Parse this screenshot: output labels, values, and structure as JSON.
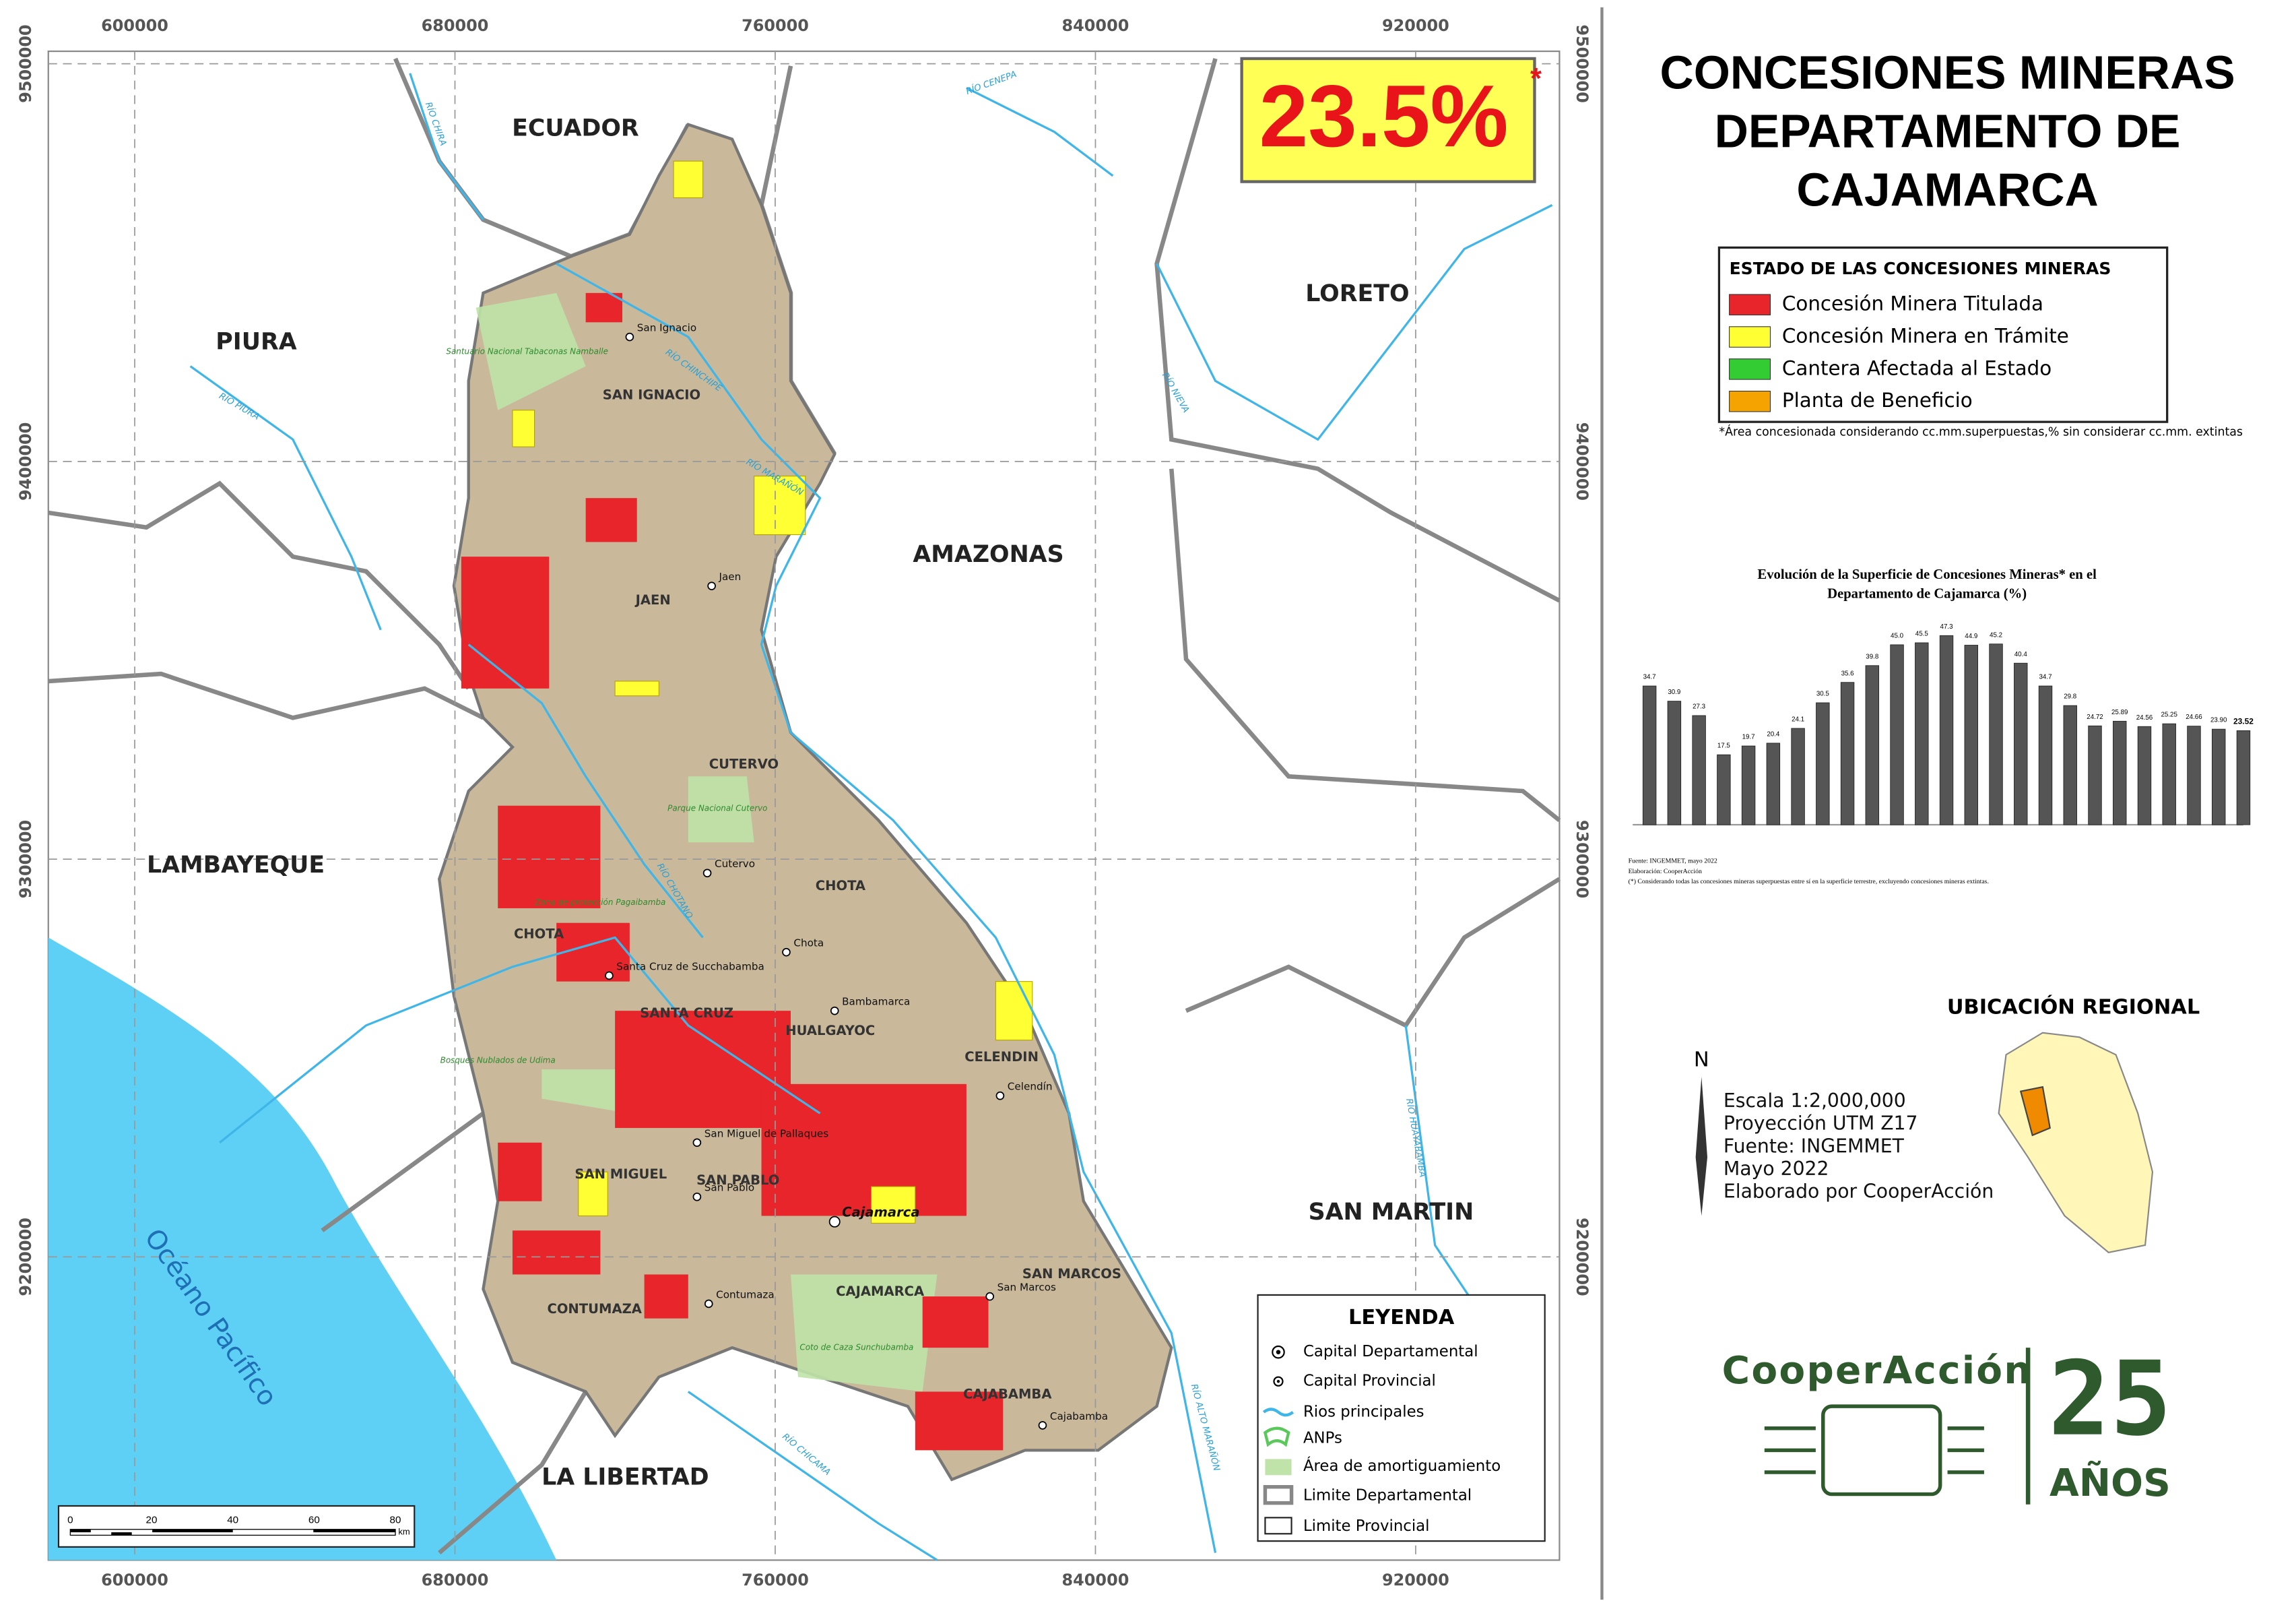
{
  "header": {
    "title_lines": [
      "CONCESIONES MINERAS",
      "DEPARTAMENTO DE",
      "CAJAMARCA"
    ],
    "percent": "23.5%",
    "asterisk": "*"
  },
  "concession_legend": {
    "title": "ESTADO DE LAS CONCESIONES MINERAS",
    "items": [
      {
        "label": "Concesión Minera Titulada",
        "color": "#e8252a"
      },
      {
        "label": "Concesión Minera en Trámite",
        "color": "#ffff33"
      },
      {
        "label": "Cantera Afectada al Estado",
        "color": "#33cc33"
      },
      {
        "label": "Planta de Beneficio",
        "color": "#f5a300"
      }
    ],
    "note": "*Área concesionada considerando cc.mm.superpuestas,% sin considerar cc.mm. extintas"
  },
  "chart_data": {
    "type": "bar",
    "title_lines": [
      "Evolución de la Superficie de Concesiones Mineras* en el",
      "Departamento de Cajamarca (%)"
    ],
    "categories": [
      null,
      null,
      null,
      null,
      null,
      null,
      null,
      null,
      null,
      null,
      null,
      null,
      null,
      null,
      null,
      null,
      null,
      null,
      null,
      null,
      null,
      null,
      null,
      null,
      null
    ],
    "values": [
      34.7,
      30.9,
      27.3,
      17.5,
      19.7,
      20.4,
      24.1,
      30.5,
      35.6,
      39.8,
      45.0,
      45.5,
      47.3,
      44.9,
      45.2,
      40.4,
      34.7,
      29.8,
      24.72,
      25.89,
      24.56,
      25.25,
      24.66,
      23.9,
      23.52
    ],
    "value_labels": [
      "34.7",
      "30.9",
      "27.3",
      "17.5",
      "19.7",
      "20.4",
      "24.1",
      "30.5",
      "35.6",
      "39.8",
      "45.0",
      "45.5",
      "47.3",
      "44.9",
      "45.2",
      "40.4",
      "34.7",
      "29.8",
      "24.72",
      "25.89",
      "24.56",
      "25.25",
      "24.66",
      "23.90",
      "23.52"
    ],
    "color": "#555555",
    "notes": [
      "Fuente: INGEMMET, mayo 2022",
      "Elaboración: CooperAcción",
      "(*) Considerando todas las concesiones mineras superpuestas entre sí en la superficie terrestre, excluyendo concesiones mineras extintas."
    ]
  },
  "map": {
    "xticks": [
      600000,
      680000,
      760000,
      840000,
      920000
    ],
    "yticks": [
      9200000,
      9300000,
      9400000,
      9500000
    ],
    "regions": [
      "ECUADOR",
      "PIURA",
      "LORETO",
      "AMAZONAS",
      "LAMBAYEQUE",
      "SAN MARTIN",
      "LA LIBERTAD",
      "Océano Pacífico"
    ],
    "provinces": [
      "SAN IGNACIO",
      "JAEN",
      "CUTERVO",
      "CHOTA",
      "CHOTA",
      "SANTA CRUZ",
      "HUALGAYOC",
      "CELENDIN",
      "SAN MIGUEL",
      "SAN PABLO",
      "CAJAMARCA",
      "CONTUMAZA",
      "SAN MARCOS",
      "CAJABAMBA"
    ],
    "cities": [
      "San Ignacio",
      "Jaen",
      "Cutervo",
      "Chota",
      "Santa Cruz de Succhabamba",
      "Bambamarca",
      "Celendín",
      "San Miguel de Pallaques",
      "San Pablo",
      "Cajamarca",
      "Contumaza",
      "San Marcos",
      "Cajabamba"
    ],
    "rivers": [
      "RÍO CHIRA",
      "RÍO PIURA",
      "RÍO CENEPA",
      "RÍO CHINCHIPE",
      "RÍO MARAÑÓN",
      "RÍO NIEVA",
      "RÍO HUAYABAMBA",
      "RÍO ALTO MARAÑÓN",
      "RÍO CHICAMA",
      "RÍO CHOTANO"
    ],
    "anps": [
      "Santuario Nacional Tabaconas Namballe",
      "Parque Nacional Cutervo",
      "Zona de protección Pagaibamba",
      "Bosques Nublados de Udima",
      "Coto de Caza Sunchubamba"
    ]
  },
  "map_legend": {
    "title": "LEYENDA",
    "items": [
      "Capital Departamental",
      "Capital Provincial",
      "Rios principales",
      "ANPs",
      "Área de amortiguamiento",
      "Limite Departamental",
      "Limite Provincial"
    ]
  },
  "scale_bar": {
    "ticks": [
      "0",
      "20",
      "40",
      "60",
      "80"
    ],
    "unit": "km"
  },
  "info": {
    "north": "N",
    "lines": [
      "Escala 1:2,000,000",
      "Proyección UTM Z17",
      "Fuente: INGEMMET",
      "Mayo 2022",
      "Elaborado por CooperAcción"
    ]
  },
  "location": {
    "title": "UBICACIÓN REGIONAL"
  },
  "logo": {
    "name": "CooperAcción",
    "years": "25",
    "years_label": "AÑOS"
  }
}
